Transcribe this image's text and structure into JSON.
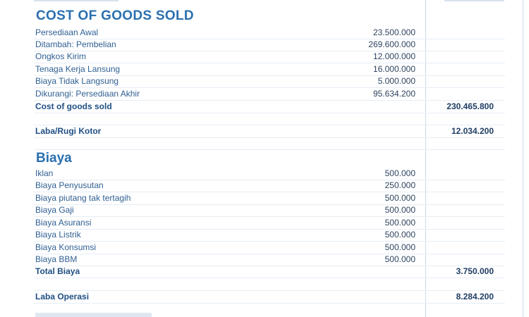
{
  "cogs": {
    "heading": "COST OF GOODS SOLD",
    "rows": [
      {
        "label": "Persediaan Awal",
        "amount": "23.500.000"
      },
      {
        "label": "Ditambah: Pembelian",
        "amount": "269.600.000"
      },
      {
        "label": "Ongkos Kirim",
        "amount": "12.000.000"
      },
      {
        "label": "Tenaga Kerja Lansung",
        "amount": "16.000.000"
      },
      {
        "label": "Biaya Tidak Langsung",
        "amount": "5.000.000"
      },
      {
        "label": "Dikurangi: Persediaan Akhir",
        "amount": "95.634.200"
      }
    ],
    "total": {
      "label": "Cost of goods sold",
      "value": "230.465.800"
    }
  },
  "gross": {
    "label": "Laba/Rugi Kotor",
    "value": "12.034.200"
  },
  "biaya": {
    "heading": "Biaya",
    "rows": [
      {
        "label": "Iklan",
        "amount": "500.000"
      },
      {
        "label": "Biaya Penyusutan",
        "amount": "250.000"
      },
      {
        "label": "Biaya piutang tak tertagih",
        "amount": "500.000"
      },
      {
        "label": "Biaya Gaji",
        "amount": "500.000"
      },
      {
        "label": "Biaya Asuransi",
        "amount": "500.000"
      },
      {
        "label": "Biaya Listrik",
        "amount": "500.000"
      },
      {
        "label": "Biaya Konsumsi",
        "amount": "500.000"
      },
      {
        "label": "Biaya BBM",
        "amount": "500.000"
      }
    ],
    "total": {
      "label": "Total Biaya",
      "value": "3.750.000"
    }
  },
  "operating": {
    "label": "Laba Operasi",
    "value": "8.284.200"
  }
}
